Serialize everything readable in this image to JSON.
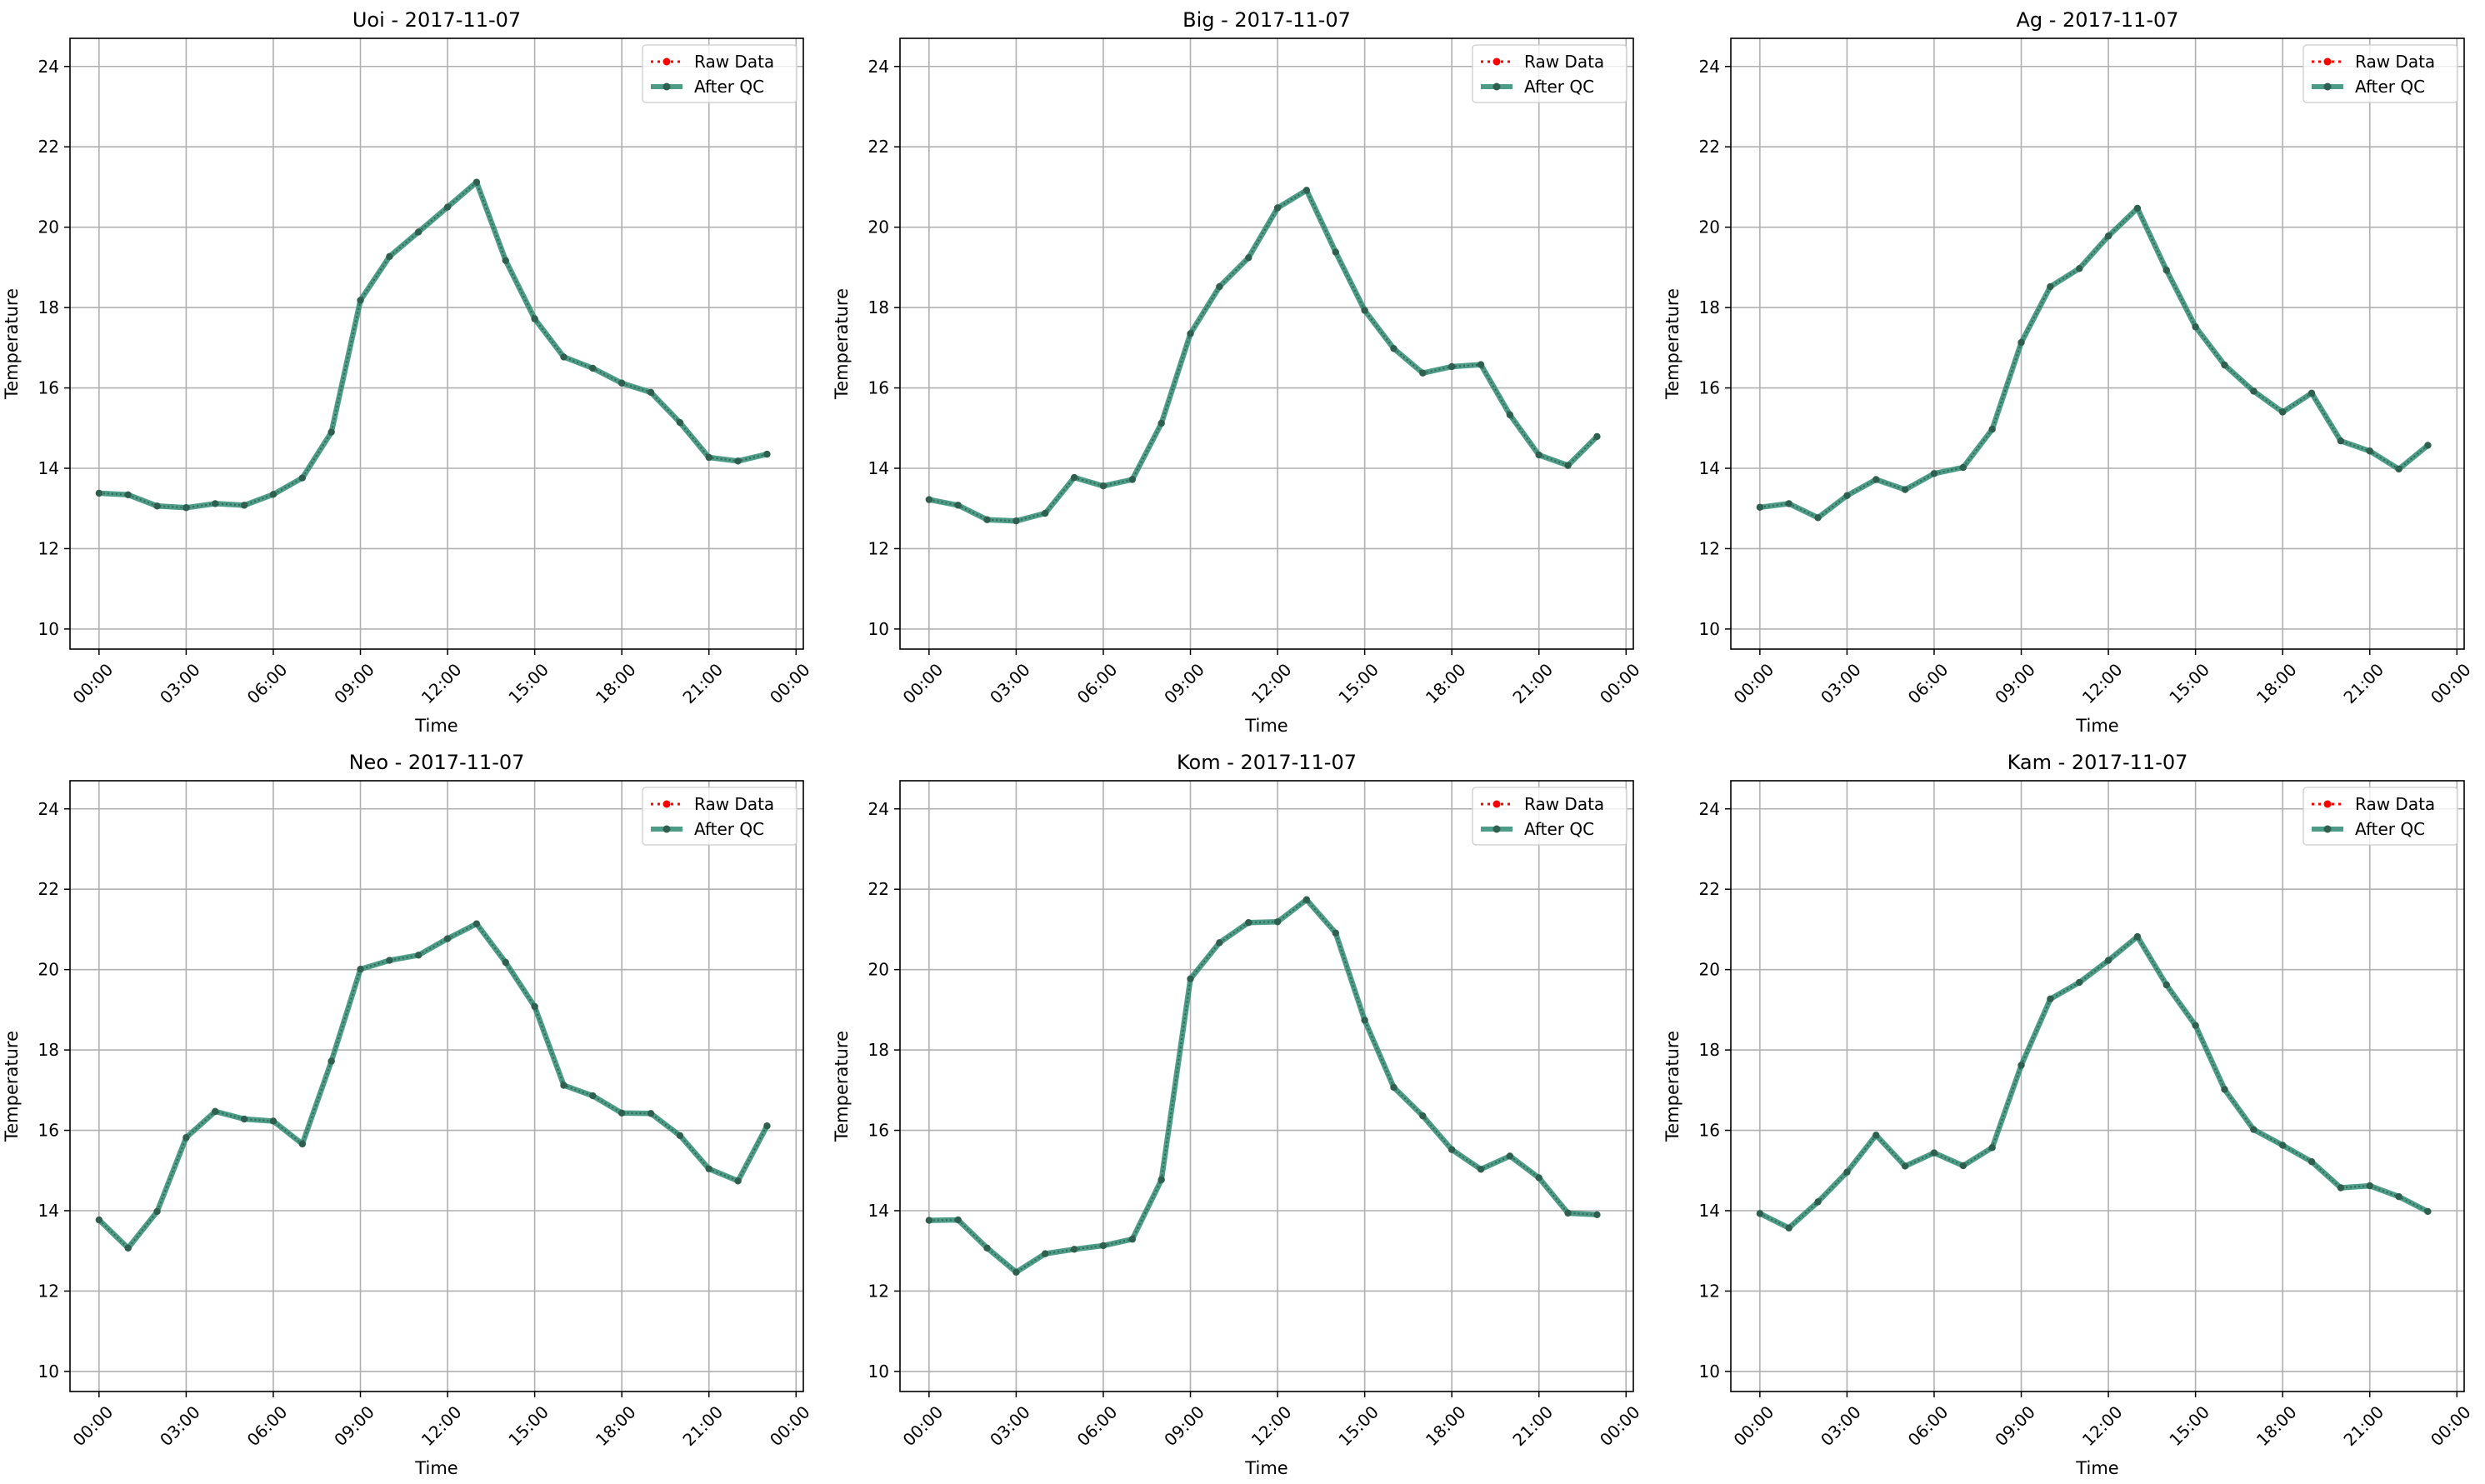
{
  "colors": {
    "raw": "#ff0000",
    "qc": "#2e8b72",
    "qc_marker": "#2f5f4f",
    "grid": "#b0b0b0"
  },
  "legend": {
    "raw_label": "Raw Data",
    "qc_label": "After QC"
  },
  "chart_data": [
    {
      "type": "line",
      "title": "Uoi - 2017-11-07",
      "xlabel": "Time",
      "ylabel": "Temperature",
      "ylim": [
        9.5,
        24.7
      ],
      "yticks": [
        10,
        12,
        14,
        16,
        18,
        20,
        22,
        24
      ],
      "xlim": [
        "2017-11-06 23:00",
        "2017-11-08 00:15"
      ],
      "xticks": [
        "00:00",
        "03:00",
        "06:00",
        "09:00",
        "12:00",
        "15:00",
        "18:00",
        "21:00",
        "00:00"
      ],
      "grid": true,
      "legend_position": "top-right",
      "x": [
        "00:00",
        "01:00",
        "02:00",
        "03:00",
        "04:00",
        "05:00",
        "06:00",
        "07:00",
        "08:00",
        "09:00",
        "10:00",
        "11:00",
        "12:00",
        "13:00",
        "14:00",
        "15:00",
        "16:00",
        "17:00",
        "18:00",
        "19:00",
        "20:00",
        "21:00",
        "22:00",
        "23:00"
      ],
      "series": [
        {
          "name": "Raw Data",
          "values": [
            13.38,
            13.34,
            13.06,
            13.02,
            13.12,
            13.08,
            13.35,
            13.76,
            14.9,
            18.18,
            19.27,
            19.88,
            20.5,
            21.12,
            19.17,
            17.72,
            16.77,
            16.49,
            16.12,
            15.89,
            15.14,
            14.27,
            14.18,
            14.35
          ]
        },
        {
          "name": "After QC",
          "values": [
            13.38,
            13.34,
            13.06,
            13.02,
            13.12,
            13.08,
            13.35,
            13.76,
            14.9,
            18.18,
            19.27,
            19.88,
            20.5,
            21.12,
            19.17,
            17.72,
            16.77,
            16.49,
            16.12,
            15.89,
            15.14,
            14.27,
            14.18,
            14.35
          ]
        }
      ]
    },
    {
      "type": "line",
      "title": "Big - 2017-11-07",
      "xlabel": "Time",
      "ylabel": "Temperature",
      "ylim": [
        9.5,
        24.7
      ],
      "yticks": [
        10,
        12,
        14,
        16,
        18,
        20,
        22,
        24
      ],
      "xlim": [
        "2017-11-06 23:00",
        "2017-11-08 00:15"
      ],
      "xticks": [
        "00:00",
        "03:00",
        "06:00",
        "09:00",
        "12:00",
        "15:00",
        "18:00",
        "21:00",
        "00:00"
      ],
      "grid": true,
      "legend_position": "top-right",
      "x": [
        "00:00",
        "01:00",
        "02:00",
        "03:00",
        "04:00",
        "05:00",
        "06:00",
        "07:00",
        "08:00",
        "09:00",
        "10:00",
        "11:00",
        "12:00",
        "13:00",
        "14:00",
        "15:00",
        "16:00",
        "17:00",
        "18:00",
        "19:00",
        "20:00",
        "21:00",
        "22:00",
        "23:00"
      ],
      "series": [
        {
          "name": "Raw Data",
          "values": [
            13.22,
            13.08,
            12.72,
            12.69,
            12.88,
            13.77,
            13.56,
            13.72,
            15.12,
            17.35,
            18.52,
            19.24,
            20.48,
            20.92,
            19.38,
            17.93,
            16.98,
            16.37,
            16.53,
            16.58,
            15.33,
            14.33,
            14.07,
            14.79
          ]
        },
        {
          "name": "After QC",
          "values": [
            13.22,
            13.08,
            12.72,
            12.69,
            12.88,
            13.77,
            13.56,
            13.72,
            15.12,
            17.35,
            18.52,
            19.24,
            20.48,
            20.92,
            19.38,
            17.93,
            16.98,
            16.37,
            16.53,
            16.58,
            15.33,
            14.33,
            14.07,
            14.79
          ]
        }
      ]
    },
    {
      "type": "line",
      "title": "Ag - 2017-11-07",
      "xlabel": "Time",
      "ylabel": "Temperature",
      "ylim": [
        9.5,
        24.7
      ],
      "yticks": [
        10,
        12,
        14,
        16,
        18,
        20,
        22,
        24
      ],
      "xlim": [
        "2017-11-06 23:00",
        "2017-11-08 00:15"
      ],
      "xticks": [
        "00:00",
        "03:00",
        "06:00",
        "09:00",
        "12:00",
        "15:00",
        "18:00",
        "21:00",
        "00:00"
      ],
      "grid": true,
      "legend_position": "top-right",
      "x": [
        "00:00",
        "01:00",
        "02:00",
        "03:00",
        "04:00",
        "05:00",
        "06:00",
        "07:00",
        "08:00",
        "09:00",
        "10:00",
        "11:00",
        "12:00",
        "13:00",
        "14:00",
        "15:00",
        "16:00",
        "17:00",
        "18:00",
        "19:00",
        "20:00",
        "21:00",
        "22:00",
        "23:00"
      ],
      "series": [
        {
          "name": "Raw Data",
          "values": [
            13.03,
            13.12,
            12.77,
            13.32,
            13.72,
            13.47,
            13.87,
            14.02,
            14.97,
            17.13,
            18.52,
            18.97,
            19.78,
            20.47,
            18.93,
            17.52,
            16.57,
            15.92,
            15.4,
            15.87,
            14.68,
            14.43,
            13.98,
            14.57
          ]
        },
        {
          "name": "After QC",
          "values": [
            13.03,
            13.12,
            12.77,
            13.32,
            13.72,
            13.47,
            13.87,
            14.02,
            14.97,
            17.13,
            18.52,
            18.97,
            19.78,
            20.47,
            18.93,
            17.52,
            16.57,
            15.92,
            15.4,
            15.87,
            14.68,
            14.43,
            13.98,
            14.57
          ]
        }
      ]
    },
    {
      "type": "line",
      "title": "Neo - 2017-11-07",
      "xlabel": "Time",
      "ylabel": "Temperature",
      "ylim": [
        9.5,
        24.7
      ],
      "yticks": [
        10,
        12,
        14,
        16,
        18,
        20,
        22,
        24
      ],
      "xlim": [
        "2017-11-06 23:00",
        "2017-11-08 00:15"
      ],
      "xticks": [
        "00:00",
        "03:00",
        "06:00",
        "09:00",
        "12:00",
        "15:00",
        "18:00",
        "21:00",
        "00:00"
      ],
      "grid": true,
      "legend_position": "top-right",
      "x": [
        "00:00",
        "01:00",
        "02:00",
        "03:00",
        "04:00",
        "05:00",
        "06:00",
        "07:00",
        "08:00",
        "09:00",
        "10:00",
        "11:00",
        "12:00",
        "13:00",
        "14:00",
        "15:00",
        "16:00",
        "17:00",
        "18:00",
        "19:00",
        "20:00",
        "21:00",
        "22:00",
        "23:00"
      ],
      "series": [
        {
          "name": "Raw Data",
          "values": [
            13.77,
            13.07,
            13.98,
            15.82,
            16.47,
            16.28,
            16.23,
            15.66,
            17.72,
            20.01,
            20.23,
            20.36,
            20.77,
            21.14,
            20.18,
            19.08,
            17.12,
            16.86,
            16.43,
            16.42,
            15.87,
            15.04,
            14.74,
            16.11
          ]
        },
        {
          "name": "After QC",
          "values": [
            13.77,
            13.07,
            13.98,
            15.82,
            16.47,
            16.28,
            16.23,
            15.66,
            17.72,
            20.01,
            20.23,
            20.36,
            20.77,
            21.14,
            20.18,
            19.08,
            17.12,
            16.86,
            16.43,
            16.42,
            15.87,
            15.04,
            14.74,
            16.11
          ]
        }
      ]
    },
    {
      "type": "line",
      "title": "Kom - 2017-11-07",
      "xlabel": "Time",
      "ylabel": "Temperature",
      "ylim": [
        9.5,
        24.7
      ],
      "yticks": [
        10,
        12,
        14,
        16,
        18,
        20,
        22,
        24
      ],
      "xlim": [
        "2017-11-06 23:00",
        "2017-11-08 00:15"
      ],
      "xticks": [
        "00:00",
        "03:00",
        "06:00",
        "09:00",
        "12:00",
        "15:00",
        "18:00",
        "21:00",
        "00:00"
      ],
      "grid": true,
      "legend_position": "top-right",
      "x": [
        "00:00",
        "01:00",
        "02:00",
        "03:00",
        "04:00",
        "05:00",
        "06:00",
        "07:00",
        "08:00",
        "09:00",
        "10:00",
        "11:00",
        "12:00",
        "13:00",
        "14:00",
        "15:00",
        "16:00",
        "17:00",
        "18:00",
        "19:00",
        "20:00",
        "21:00",
        "22:00",
        "23:00"
      ],
      "series": [
        {
          "name": "Raw Data",
          "values": [
            13.76,
            13.77,
            13.07,
            12.47,
            12.93,
            13.04,
            13.13,
            13.29,
            14.77,
            19.77,
            20.67,
            21.17,
            21.19,
            21.74,
            20.91,
            18.74,
            17.07,
            16.36,
            15.52,
            15.03,
            15.36,
            14.82,
            13.94,
            13.9
          ]
        },
        {
          "name": "After QC",
          "values": [
            13.76,
            13.77,
            13.07,
            12.47,
            12.93,
            13.04,
            13.13,
            13.29,
            14.77,
            19.77,
            20.67,
            21.17,
            21.19,
            21.74,
            20.91,
            18.74,
            17.07,
            16.36,
            15.52,
            15.03,
            15.36,
            14.82,
            13.94,
            13.9
          ]
        }
      ]
    },
    {
      "type": "line",
      "title": "Kam - 2017-11-07",
      "xlabel": "Time",
      "ylabel": "Temperature",
      "ylim": [
        9.5,
        24.7
      ],
      "yticks": [
        10,
        12,
        14,
        16,
        18,
        20,
        22,
        24
      ],
      "xlim": [
        "2017-11-06 23:00",
        "2017-11-08 00:15"
      ],
      "xticks": [
        "00:00",
        "03:00",
        "06:00",
        "09:00",
        "12:00",
        "15:00",
        "18:00",
        "21:00",
        "00:00"
      ],
      "grid": true,
      "legend_position": "top-right",
      "x": [
        "00:00",
        "01:00",
        "02:00",
        "03:00",
        "04:00",
        "05:00",
        "06:00",
        "07:00",
        "08:00",
        "09:00",
        "10:00",
        "11:00",
        "12:00",
        "13:00",
        "14:00",
        "15:00",
        "16:00",
        "17:00",
        "18:00",
        "19:00",
        "20:00",
        "21:00",
        "22:00",
        "23:00"
      ],
      "series": [
        {
          "name": "Raw Data",
          "values": [
            13.93,
            13.57,
            14.22,
            14.96,
            15.88,
            15.11,
            15.44,
            15.12,
            15.57,
            17.62,
            19.27,
            19.68,
            20.23,
            20.82,
            19.62,
            18.61,
            17.02,
            16.02,
            15.63,
            15.22,
            14.57,
            14.62,
            14.35,
            13.98
          ]
        },
        {
          "name": "After QC",
          "values": [
            13.93,
            13.57,
            14.22,
            14.96,
            15.88,
            15.11,
            15.44,
            15.12,
            15.57,
            17.62,
            19.27,
            19.68,
            20.23,
            20.82,
            19.62,
            18.61,
            17.02,
            16.02,
            15.63,
            15.22,
            14.57,
            14.62,
            14.35,
            13.98
          ]
        }
      ]
    }
  ]
}
